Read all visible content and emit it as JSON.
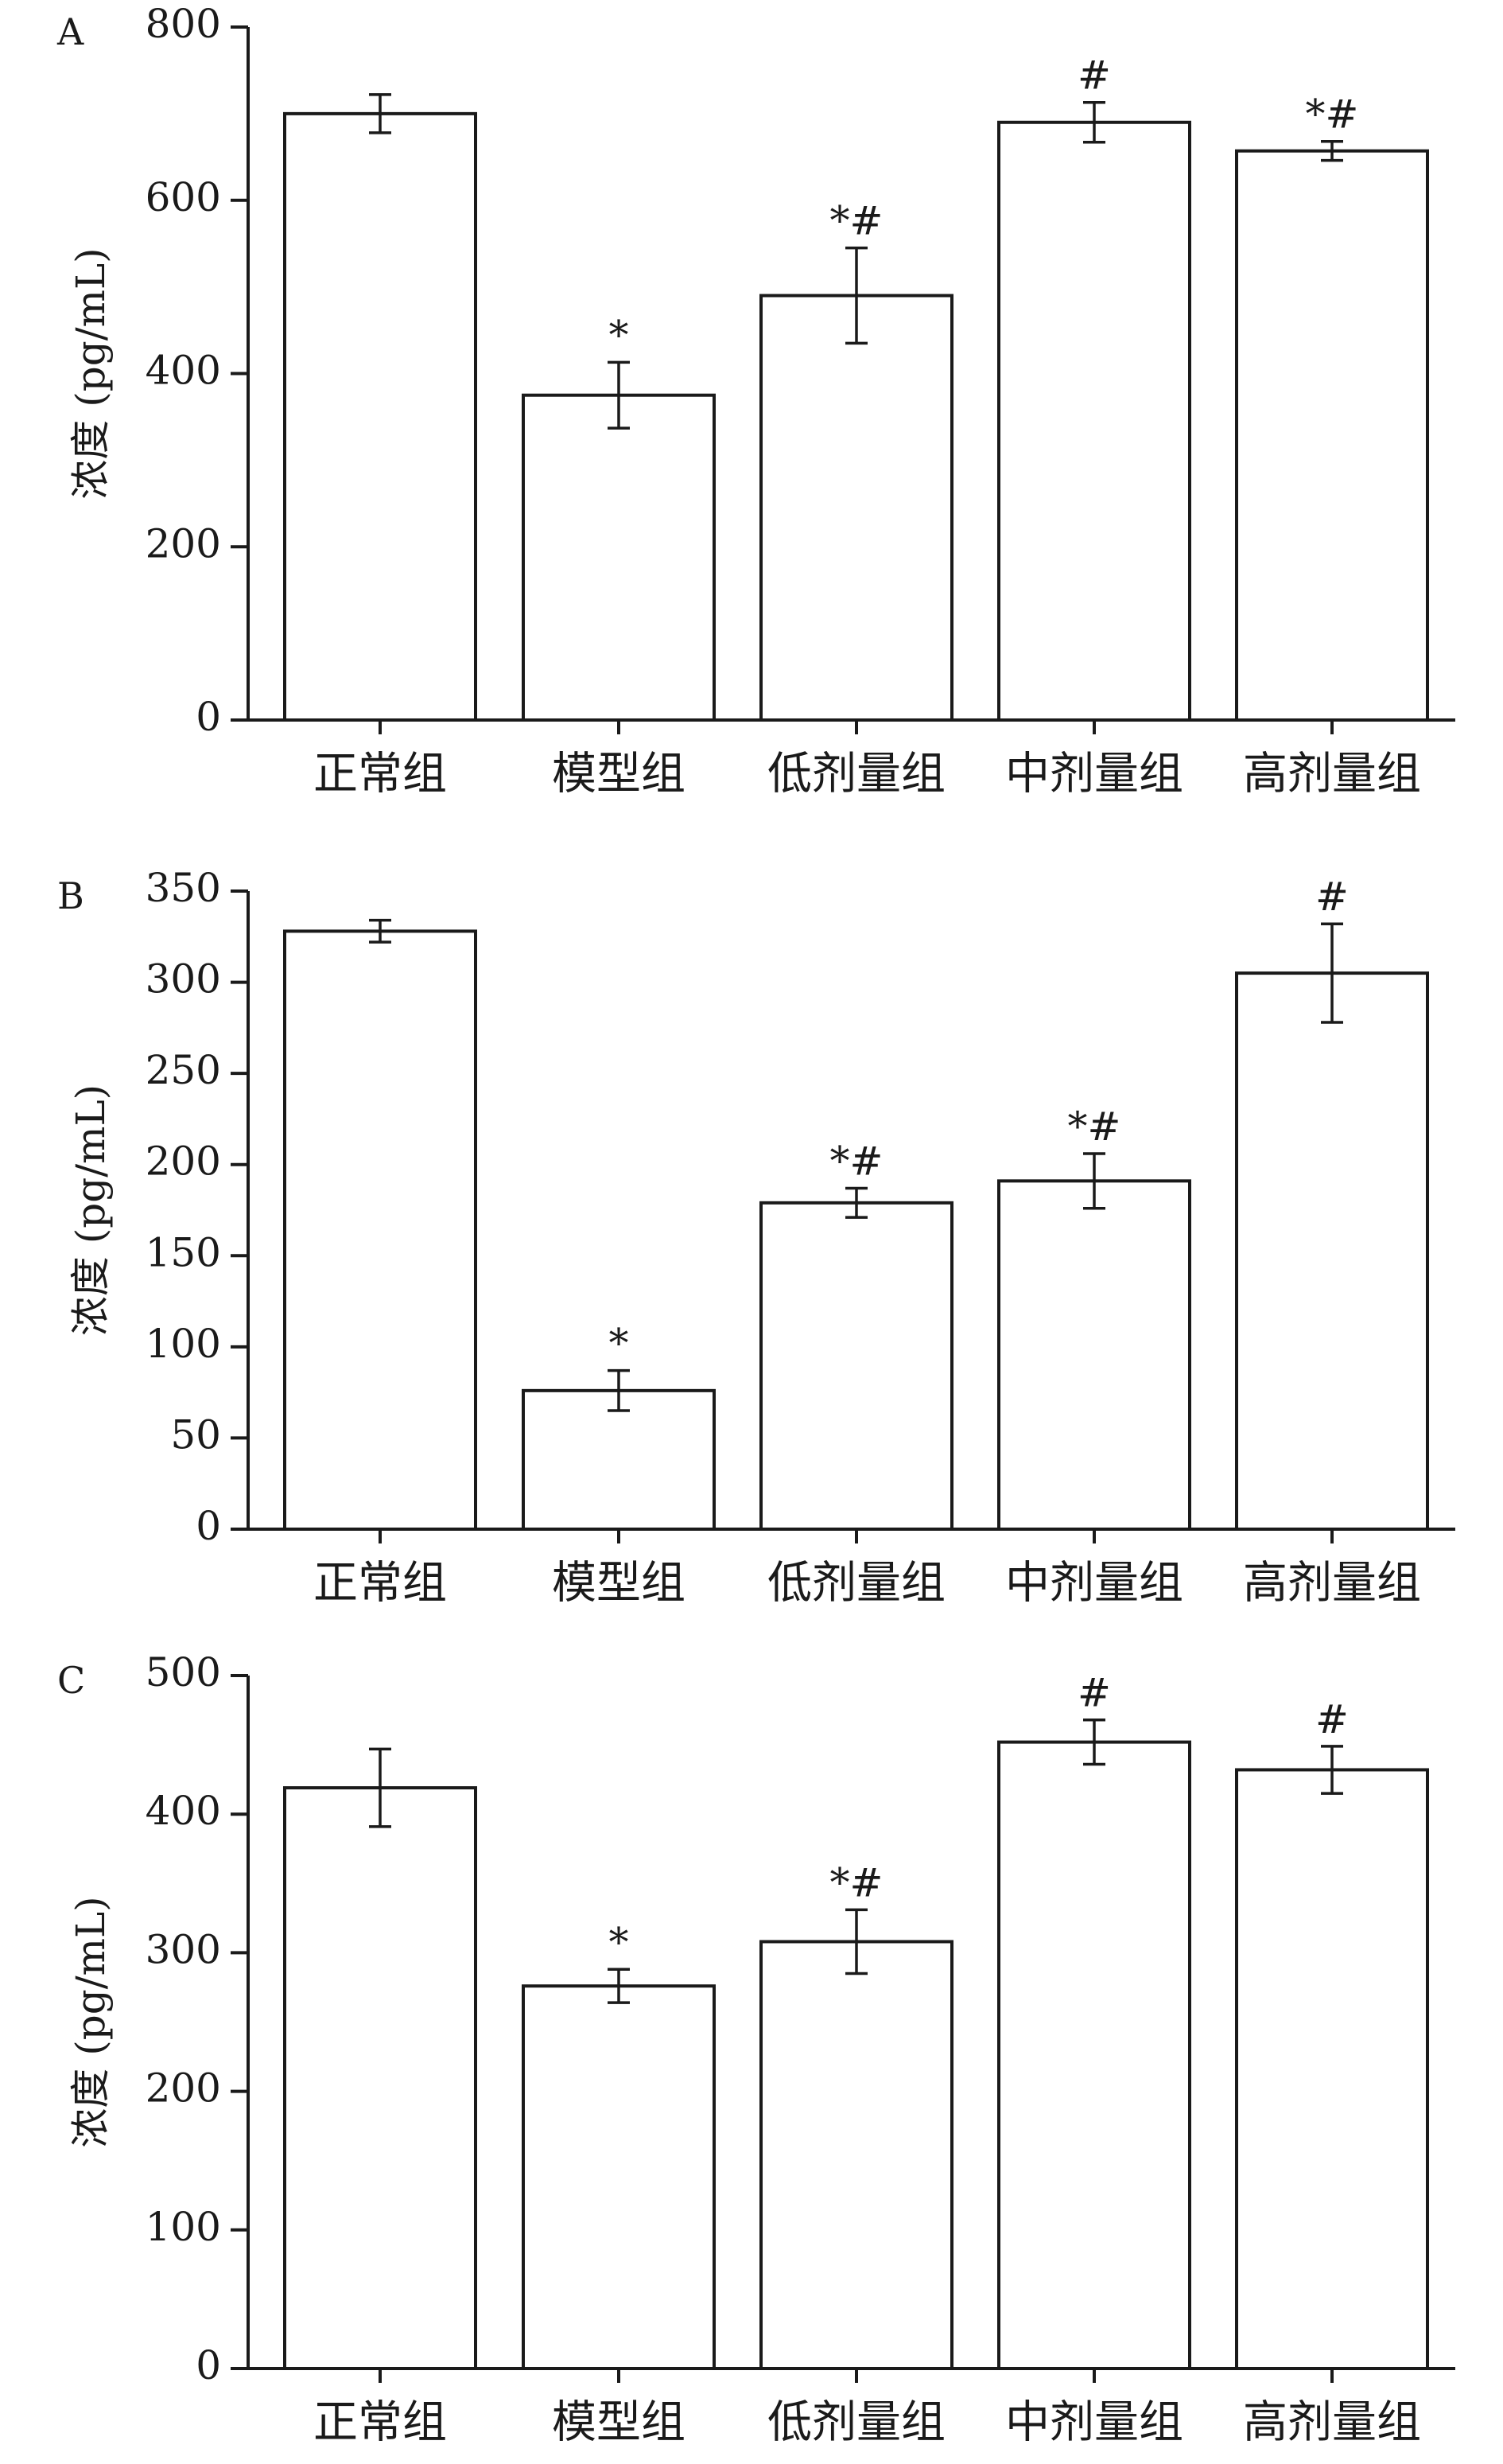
{
  "chart_data": [
    {
      "type": "bar",
      "panel_label": "A",
      "ylabel": "浓度 (pg/mL)",
      "ylim": [
        0,
        800
      ],
      "yticks": [
        0,
        200,
        400,
        600,
        800
      ],
      "categories": [
        "正常组",
        "模型组",
        "低剂量组",
        "中剂量组",
        "高剂量组"
      ],
      "values": [
        700,
        375,
        490,
        690,
        657
      ],
      "errors": [
        22,
        38,
        55,
        23,
        11
      ],
      "significance": [
        "",
        "*",
        "*#",
        "#",
        "*#"
      ]
    },
    {
      "type": "bar",
      "panel_label": "B",
      "ylabel": "浓度 (pg/mL)",
      "ylim": [
        0,
        350
      ],
      "yticks": [
        0,
        50,
        100,
        150,
        200,
        250,
        300,
        350
      ],
      "categories": [
        "正常组",
        "模型组",
        "低剂量组",
        "中剂量组",
        "高剂量组"
      ],
      "values": [
        328,
        76,
        179,
        191,
        305
      ],
      "errors": [
        6,
        11,
        8,
        15,
        27
      ],
      "significance": [
        "",
        "*",
        "*#",
        "*#",
        "#"
      ]
    },
    {
      "type": "bar",
      "panel_label": "C",
      "ylabel": "浓度 (pg/mL)",
      "ylim": [
        0,
        500
      ],
      "yticks": [
        0,
        100,
        200,
        300,
        400,
        500
      ],
      "categories": [
        "正常组",
        "模型组",
        "低剂量组",
        "中剂量组",
        "高剂量组"
      ],
      "values": [
        419,
        276,
        308,
        452,
        432
      ],
      "errors": [
        28,
        12,
        23,
        16,
        17
      ],
      "significance": [
        "",
        "*",
        "*#",
        "#",
        "#"
      ]
    }
  ]
}
